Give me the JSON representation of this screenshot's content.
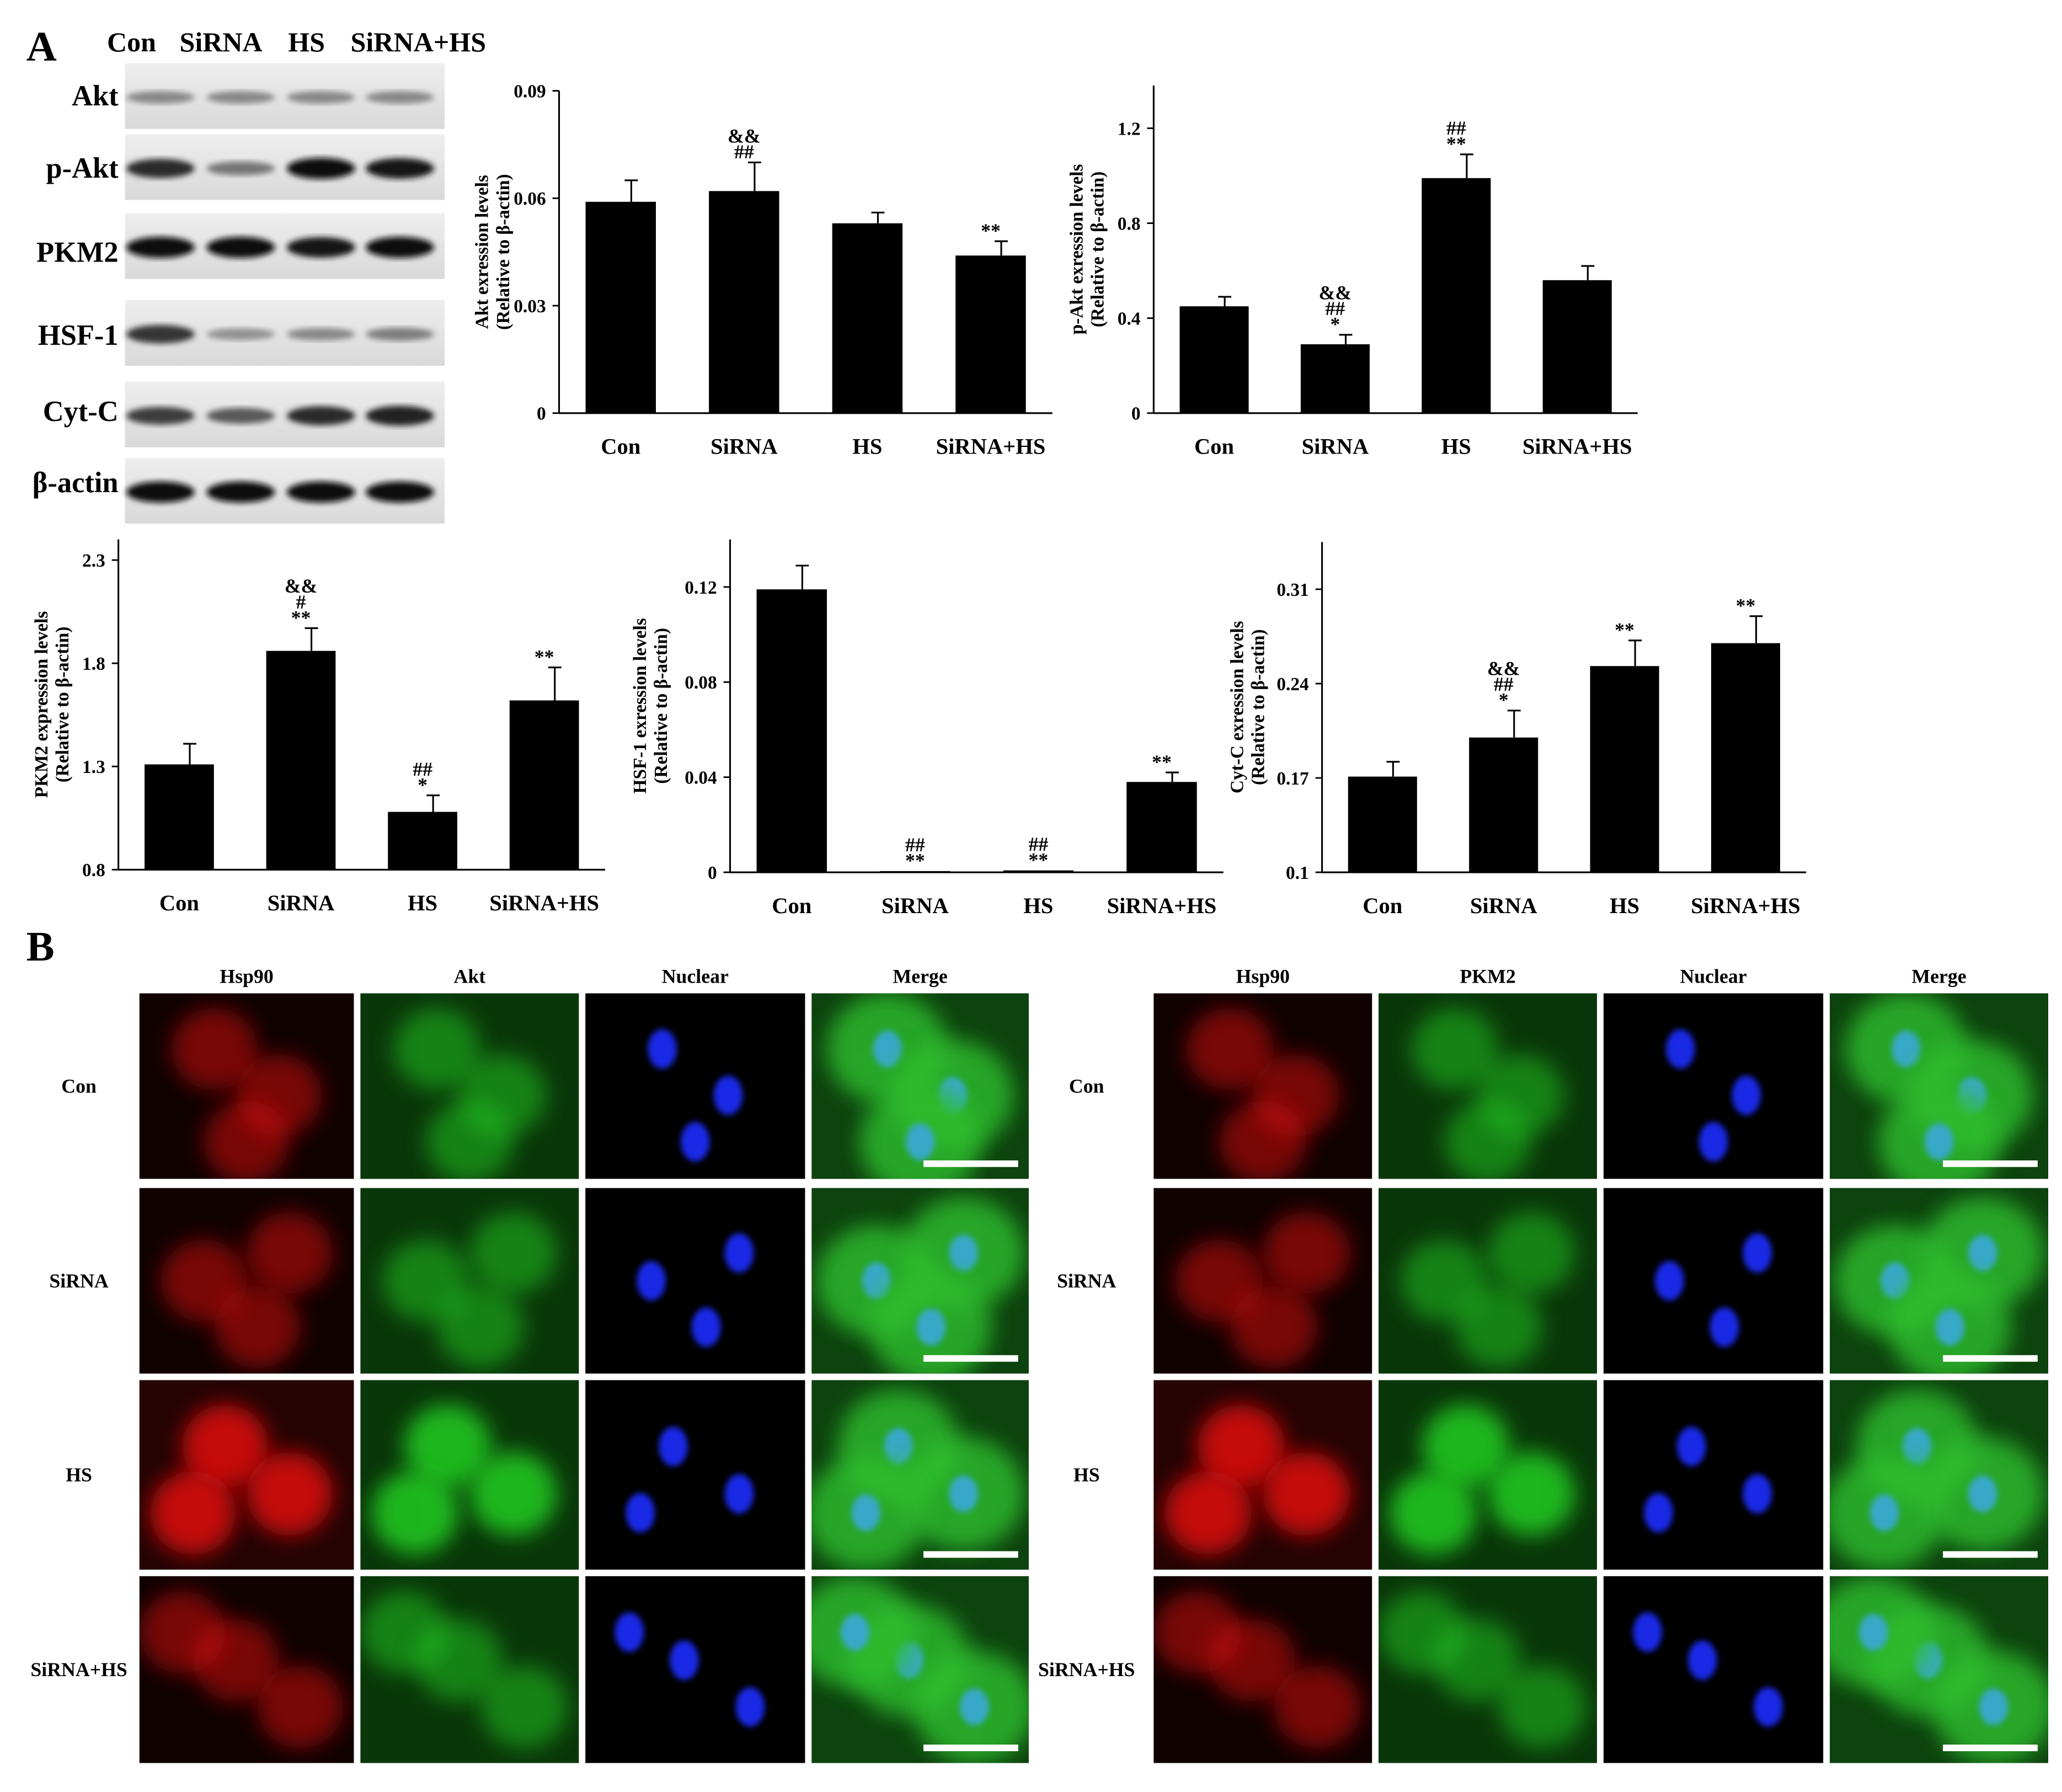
{
  "panel_a_label": "A",
  "panel_b_label": "B",
  "blot": {
    "lane_labels": [
      "Con",
      "SiRNA",
      "HS",
      "SiRNA+HS"
    ],
    "rows": [
      {
        "protein": "Akt",
        "intensities": [
          0.35,
          0.35,
          0.35,
          0.35
        ]
      },
      {
        "protein": "p-Akt",
        "intensities": [
          0.85,
          0.45,
          1.0,
          0.95
        ]
      },
      {
        "protein": "PKM2",
        "intensities": [
          1.0,
          1.0,
          0.95,
          1.0
        ]
      },
      {
        "protein": "HSF-1",
        "intensities": [
          0.8,
          0.3,
          0.35,
          0.4
        ]
      },
      {
        "protein": "Cyt-C",
        "intensities": [
          0.75,
          0.6,
          0.85,
          0.9
        ]
      },
      {
        "protein": "β-actin",
        "intensities": [
          1.0,
          1.0,
          1.0,
          1.0
        ]
      }
    ]
  },
  "chart_data": [
    {
      "type": "bar",
      "categories": [
        "Con",
        "SiRNA",
        "HS",
        "SiRNA+HS"
      ],
      "values": [
        0.059,
        0.062,
        0.053,
        0.044
      ],
      "errors": [
        0.006,
        0.008,
        0.003,
        0.004
      ],
      "annotations": [
        [],
        [
          "&&",
          "##"
        ],
        [],
        [
          "**"
        ]
      ],
      "ylabel": [
        "Akt exression levels",
        "(Relative to β-actin)"
      ],
      "ylim": [
        0,
        0.09
      ],
      "yticks": [
        0,
        0.03,
        0.06,
        0.09
      ],
      "ytick_labels": [
        "0",
        "0.03",
        "0.06",
        "0.09"
      ]
    },
    {
      "type": "bar",
      "categories": [
        "Con",
        "SiRNA",
        "HS",
        "SiRNA+HS"
      ],
      "values": [
        0.45,
        0.29,
        0.99,
        0.56
      ],
      "errors": [
        0.04,
        0.04,
        0.1,
        0.06
      ],
      "annotations": [
        [],
        [
          "&&",
          "##",
          "*"
        ],
        [
          "##",
          "**"
        ],
        []
      ],
      "ylabel": [
        "p-Akt exression levels",
        "(Relative to β-actin)"
      ],
      "ylim": [
        0,
        1.38
      ],
      "yticks": [
        0,
        0.4,
        0.8,
        1.2
      ],
      "ytick_labels": [
        "0",
        "0.4",
        "0.8",
        "1.2"
      ]
    },
    {
      "type": "bar",
      "categories": [
        "Con",
        "SiRNA",
        "HS",
        "SiRNA+HS"
      ],
      "values": [
        1.31,
        1.86,
        1.08,
        1.62
      ],
      "errors": [
        0.1,
        0.11,
        0.08,
        0.16
      ],
      "annotations": [
        [],
        [
          "&&",
          "#",
          "**"
        ],
        [
          "##",
          "*"
        ],
        [
          "**"
        ]
      ],
      "ylabel": [
        "PKM2 expression levels",
        "(Relative to β-actin)"
      ],
      "ylim": [
        0.8,
        2.4
      ],
      "yticks": [
        0.8,
        1.3,
        1.8,
        2.3
      ],
      "ytick_labels": [
        "0.8",
        "1.3",
        "1.8",
        "2.3"
      ]
    },
    {
      "type": "bar",
      "categories": [
        "Con",
        "SiRNA",
        "HS",
        "SiRNA+HS"
      ],
      "values": [
        0.119,
        0.0005,
        0.0008,
        0.038
      ],
      "errors": [
        0.01,
        0,
        0,
        0.004
      ],
      "annotations": [
        [],
        [
          "##",
          "**"
        ],
        [
          "##",
          "**"
        ],
        [
          "**"
        ]
      ],
      "ylabel": [
        "HSF-1 exression levels",
        "(Relative to β-actin)"
      ],
      "ylim": [
        0,
        0.14
      ],
      "yticks": [
        0,
        0.04,
        0.08,
        0.12
      ],
      "ytick_labels": [
        "0",
        "0.04",
        "0.08",
        "0.12"
      ]
    },
    {
      "type": "bar",
      "categories": [
        "Con",
        "SiRNA",
        "HS",
        "SiRNA+HS"
      ],
      "values": [
        0.171,
        0.2,
        0.253,
        0.27
      ],
      "errors": [
        0.011,
        0.02,
        0.019,
        0.02
      ],
      "annotations": [
        [],
        [
          "&&",
          "##",
          "*"
        ],
        [
          "**"
        ],
        [
          "**"
        ]
      ],
      "ylabel": [
        "Cyt-C exression levels",
        "(Relative to β-actin)"
      ],
      "ylim": [
        0.1,
        0.345
      ],
      "yticks": [
        0.1,
        0.17,
        0.24,
        0.31
      ],
      "ytick_labels": [
        "0.1",
        "0.17",
        "0.24",
        "0.31"
      ]
    }
  ],
  "micro_grids": [
    {
      "columns": [
        "Hsp90",
        "Akt",
        "Nuclear",
        "Merge"
      ],
      "rows": [
        "Con",
        "SiRNA",
        "HS",
        "SiRNA+HS"
      ],
      "colors": [
        "#e01010",
        "#22cc22",
        "#1a2fff",
        "merge"
      ]
    },
    {
      "columns": [
        "Hsp90",
        "PKM2",
        "Nuclear",
        "Merge"
      ],
      "rows": [
        "Con",
        "SiRNA",
        "HS",
        "SiRNA+HS"
      ],
      "colors": [
        "#e01010",
        "#22cc22",
        "#1a2fff",
        "merge"
      ]
    }
  ]
}
